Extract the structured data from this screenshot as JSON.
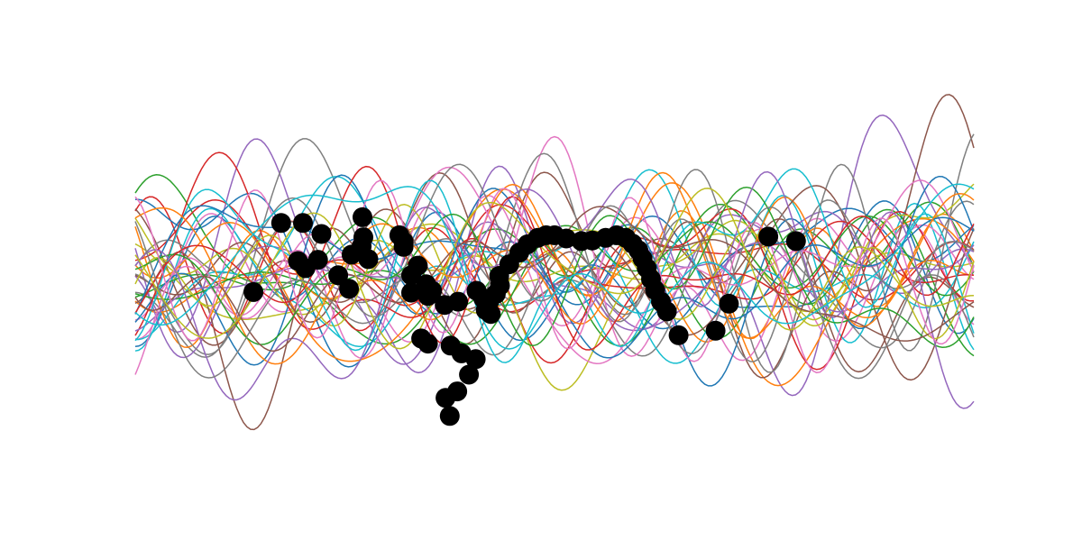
{
  "chart_data": {
    "type": "line",
    "title": "",
    "xlabel": "",
    "ylabel": "",
    "grid": false,
    "axes_visible": false,
    "xlim": [
      0,
      10
    ],
    "ylim": [
      -3.2,
      3.2
    ],
    "sample_count": 40,
    "palette": [
      "#1f77b4",
      "#ff7f0e",
      "#2ca02c",
      "#d62728",
      "#9467bd",
      "#8c564b",
      "#e377c2",
      "#7f7f7f",
      "#bcbd22",
      "#17becf"
    ],
    "observations": {
      "color": "#000000",
      "points": [
        {
          "x": 1.41,
          "y": -0.32
        },
        {
          "x": 1.74,
          "y": 0.75
        },
        {
          "x": 2.0,
          "y": 0.75
        },
        {
          "x": 2.22,
          "y": 0.58
        },
        {
          "x": 1.94,
          "y": 0.16
        },
        {
          "x": 2.03,
          "y": 0.05
        },
        {
          "x": 2.18,
          "y": 0.18
        },
        {
          "x": 2.42,
          "y": -0.06
        },
        {
          "x": 2.55,
          "y": -0.27
        },
        {
          "x": 2.71,
          "y": 0.84
        },
        {
          "x": 2.72,
          "y": 0.53
        },
        {
          "x": 2.7,
          "y": 0.39
        },
        {
          "x": 2.58,
          "y": 0.26
        },
        {
          "x": 2.78,
          "y": 0.19
        },
        {
          "x": 3.15,
          "y": 0.56
        },
        {
          "x": 3.2,
          "y": 0.46
        },
        {
          "x": 3.2,
          "y": 0.38
        },
        {
          "x": 3.37,
          "y": 0.09
        },
        {
          "x": 3.29,
          "y": -0.06
        },
        {
          "x": 3.29,
          "y": -0.33
        },
        {
          "x": 3.49,
          "y": -0.38
        },
        {
          "x": 3.47,
          "y": -0.2
        },
        {
          "x": 3.54,
          "y": -0.3
        },
        {
          "x": 3.69,
          "y": -0.52
        },
        {
          "x": 3.85,
          "y": -0.47
        },
        {
          "x": 4.07,
          "y": -0.3
        },
        {
          "x": 4.15,
          "y": -0.42
        },
        {
          "x": 4.22,
          "y": -0.47
        },
        {
          "x": 4.3,
          "y": -0.35
        },
        {
          "x": 4.35,
          "y": -0.22
        },
        {
          "x": 4.18,
          "y": -0.6
        },
        {
          "x": 4.24,
          "y": -0.66
        },
        {
          "x": 3.41,
          "y": -1.04
        },
        {
          "x": 3.49,
          "y": -1.12
        },
        {
          "x": 3.76,
          "y": -1.15
        },
        {
          "x": 3.89,
          "y": -1.27
        },
        {
          "x": 4.06,
          "y": -1.36
        },
        {
          "x": 3.98,
          "y": -1.6
        },
        {
          "x": 3.84,
          "y": -1.86
        },
        {
          "x": 3.7,
          "y": -1.96
        },
        {
          "x": 3.75,
          "y": -2.24
        },
        {
          "x": 4.34,
          "y": -0.07
        },
        {
          "x": 4.46,
          "y": 0.11
        },
        {
          "x": 4.58,
          "y": 0.29
        },
        {
          "x": 4.68,
          "y": 0.42
        },
        {
          "x": 4.8,
          "y": 0.52
        },
        {
          "x": 4.9,
          "y": 0.56
        },
        {
          "x": 5.0,
          "y": 0.56
        },
        {
          "x": 5.14,
          "y": 0.51
        },
        {
          "x": 5.32,
          "y": 0.47
        },
        {
          "x": 5.45,
          "y": 0.48
        },
        {
          "x": 5.61,
          "y": 0.52
        },
        {
          "x": 5.74,
          "y": 0.56
        },
        {
          "x": 5.85,
          "y": 0.52
        },
        {
          "x": 5.93,
          "y": 0.43
        },
        {
          "x": 6.0,
          "y": 0.33
        },
        {
          "x": 6.05,
          "y": 0.2
        },
        {
          "x": 6.1,
          "y": 0.05
        },
        {
          "x": 6.15,
          "y": -0.12
        },
        {
          "x": 6.2,
          "y": -0.29
        },
        {
          "x": 6.27,
          "y": -0.47
        },
        {
          "x": 6.34,
          "y": -0.62
        },
        {
          "x": 6.48,
          "y": -0.99
        },
        {
          "x": 6.92,
          "y": -0.92
        },
        {
          "x": 7.08,
          "y": -0.5
        },
        {
          "x": 7.55,
          "y": 0.54
        },
        {
          "x": 7.88,
          "y": 0.47
        }
      ]
    }
  }
}
